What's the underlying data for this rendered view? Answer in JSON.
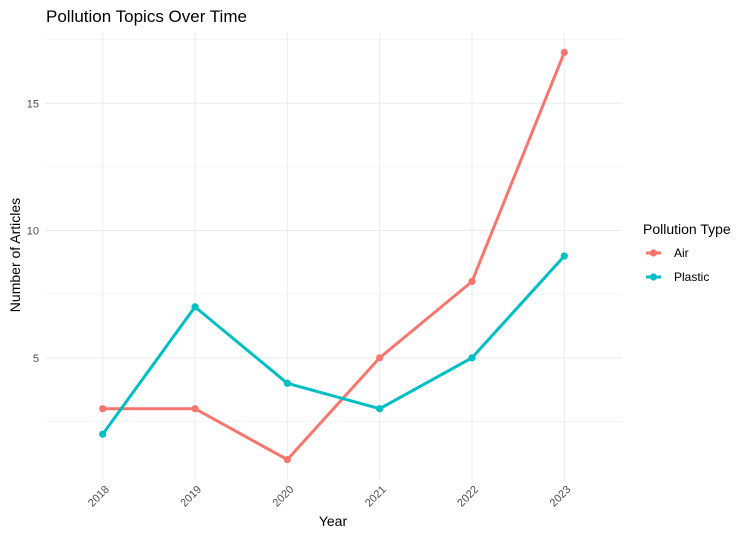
{
  "chart_data": {
    "type": "line",
    "title": "Pollution Topics Over Time",
    "xlabel": "Year",
    "ylabel": "Number of Articles",
    "x": [
      2018,
      2019,
      2020,
      2021,
      2022,
      2023
    ],
    "x_tick_labels": [
      "2018",
      "2019",
      "2020",
      "2021",
      "2022",
      "2023"
    ],
    "y_ticks": [
      5,
      10,
      15
    ],
    "y_minor_ticks": [
      2.5,
      7.5,
      12.5,
      17.5
    ],
    "ylim": [
      0.2,
      17.8
    ],
    "grid": true,
    "legend": {
      "title": "Pollution Type",
      "position": "right"
    },
    "series": [
      {
        "name": "Air",
        "color": "#F8766D",
        "values": [
          3,
          3,
          1,
          5,
          8,
          17
        ]
      },
      {
        "name": "Plastic",
        "color": "#00BFC4",
        "values": [
          2,
          7,
          4,
          3,
          5,
          9
        ]
      }
    ]
  }
}
